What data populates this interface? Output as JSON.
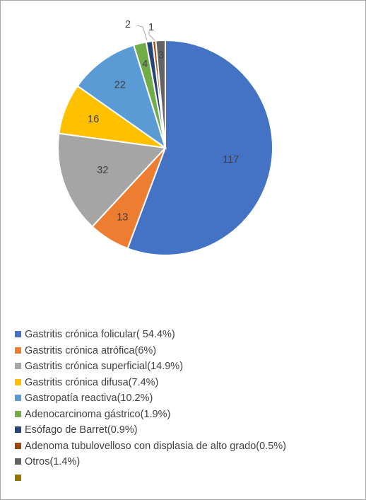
{
  "chart_data": {
    "type": "pie",
    "colors": {
      "frame_border": "#a6a6a6",
      "label_text": "#404040",
      "leader_line": "#a6a6a6"
    },
    "slices": [
      {
        "label": "Gastritis crónica folicular( 54.4%)",
        "value": 117,
        "data_label": "117",
        "color": "#4472c4"
      },
      {
        "label": "Gastritis crónica atrófica(6%)",
        "value": 13,
        "data_label": "13",
        "color": "#ed7d31"
      },
      {
        "label": "Gastritis crónica superficial(14.9%)",
        "value": 32,
        "data_label": "32",
        "color": "#a5a5a5"
      },
      {
        "label": "Gastritis crónica difusa(7.4%)",
        "value": 16,
        "data_label": "16",
        "color": "#ffc000"
      },
      {
        "label": "Gastropatía reactiva(10.2%)",
        "value": 22,
        "data_label": "22",
        "color": "#5b9bd5"
      },
      {
        "label": "Adenocarcinoma gástrico(1.9%)",
        "value": 4,
        "data_label": "4",
        "color": "#70ad47"
      },
      {
        "label": "Esófago de Barret(0.9%)",
        "value": 2,
        "data_label": "2",
        "color": "#264478"
      },
      {
        "label": "Adenoma tubulovelloso con displasia de alto grado(0.5%)",
        "value": 1,
        "data_label": "1",
        "color": "#9e480e"
      },
      {
        "label": "Otros(1.4%)",
        "value": 3,
        "data_label": "3",
        "color": "#636363"
      },
      {
        "label": "",
        "value": 0,
        "data_label": "",
        "color": "#997300"
      }
    ]
  }
}
